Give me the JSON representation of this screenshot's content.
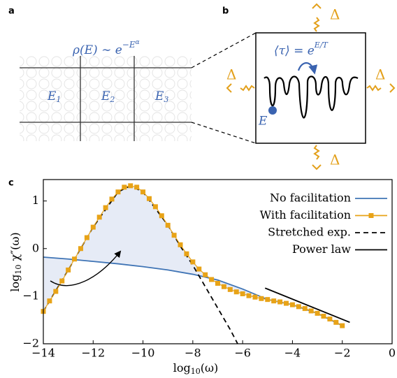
{
  "panel_a": {
    "label": "a",
    "formula": [
      "ρ(E) ∼ e",
      "−E",
      "α"
    ],
    "regions": [
      {
        "base": "E",
        "sub": "1"
      },
      {
        "base": "E",
        "sub": "2"
      },
      {
        "base": "E",
        "sub": "3"
      }
    ]
  },
  "panel_b": {
    "label": "b",
    "formula": [
      "⟨τ⟩ = e",
      "E/T"
    ],
    "state": "E",
    "delta": [
      "Δ",
      "Δ",
      "Δ",
      "Δ"
    ]
  },
  "panel_c": {
    "label": "c"
  },
  "chart_data": {
    "type": "line",
    "xlabel": [
      "log",
      "10",
      "(ω)"
    ],
    "ylabel": [
      "log",
      "10",
      " χ″(ω)"
    ],
    "xlim": [
      -14,
      0
    ],
    "ylim": [
      -2,
      1.45
    ],
    "xticks": [
      {
        "value": -14,
        "label": "−14"
      },
      {
        "value": -12,
        "label": "−12"
      },
      {
        "value": -10,
        "label": "−10"
      },
      {
        "value": -8,
        "label": "−8"
      },
      {
        "value": -6,
        "label": "−6"
      },
      {
        "value": -4,
        "label": "−4"
      },
      {
        "value": -2,
        "label": "−2"
      },
      0
    ],
    "yticks": [
      {
        "value": -2,
        "label": "−2"
      },
      {
        "value": -1,
        "label": "−1"
      },
      0,
      1
    ],
    "legend": "upper right",
    "fill_between": true,
    "fill_color": "#e6ebf6",
    "series": [
      {
        "name": "No facilitation",
        "color": "#3f74b5",
        "style": "solid",
        "x": [
          -14,
          -13,
          -12,
          -11,
          -10,
          -9,
          -8,
          -7,
          -6,
          -5,
          -4,
          -3,
          -2
        ],
        "values": [
          -0.18,
          -0.22,
          -0.27,
          -0.32,
          -0.38,
          -0.45,
          -0.54,
          -0.66,
          -0.85,
          -1.07,
          -1.18,
          -1.36,
          -1.62
        ]
      },
      {
        "name": "With facilitation",
        "color": "#e8a317",
        "style": "solid",
        "marker": "square",
        "x": [
          -14,
          -13.75,
          -13.5,
          -13.25,
          -13,
          -12.75,
          -12.5,
          -12.25,
          -12,
          -11.75,
          -11.5,
          -11.25,
          -11,
          -10.75,
          -10.5,
          -10.25,
          -10,
          -9.75,
          -9.5,
          -9.25,
          -9,
          -8.75,
          -8.5,
          -8.25,
          -8,
          -7.75,
          -7.5,
          -7.25,
          -7,
          -6.75,
          -6.5,
          -6.25,
          -6,
          -5.75,
          -5.5,
          -5.25,
          -5,
          -4.75,
          -4.5,
          -4.25,
          -4,
          -3.75,
          -3.5,
          -3.25,
          -3,
          -2.75,
          -2.5,
          -2.25,
          -2
        ],
        "values": [
          -1.32,
          -1.1,
          -0.9,
          -0.68,
          -0.45,
          -0.22,
          0.0,
          0.23,
          0.45,
          0.66,
          0.86,
          1.04,
          1.19,
          1.29,
          1.32,
          1.29,
          1.19,
          1.05,
          0.88,
          0.69,
          0.49,
          0.28,
          0.08,
          -0.11,
          -0.28,
          -0.43,
          -0.55,
          -0.65,
          -0.73,
          -0.8,
          -0.86,
          -0.91,
          -0.95,
          -0.99,
          -1.02,
          -1.05,
          -1.07,
          -1.1,
          -1.12,
          -1.15,
          -1.18,
          -1.22,
          -1.26,
          -1.31,
          -1.36,
          -1.42,
          -1.48,
          -1.55,
          -1.62
        ]
      },
      {
        "name": "Stretched exp.",
        "color": "#000000",
        "style": "dashed",
        "x": [
          -14,
          -13,
          -12,
          -11,
          -10.5,
          -10,
          -9,
          -8.5,
          -8,
          -7.5,
          -7,
          -6.5,
          -6.2
        ],
        "values": [
          -1.32,
          -0.45,
          0.45,
          1.19,
          1.32,
          1.19,
          0.49,
          0.05,
          -0.35,
          -0.8,
          -1.25,
          -1.7,
          -2.0
        ]
      },
      {
        "name": "Power law",
        "color": "#000000",
        "style": "solid",
        "x": [
          -5.1,
          -1.7
        ],
        "values": [
          -0.83,
          -1.55
        ]
      }
    ]
  }
}
